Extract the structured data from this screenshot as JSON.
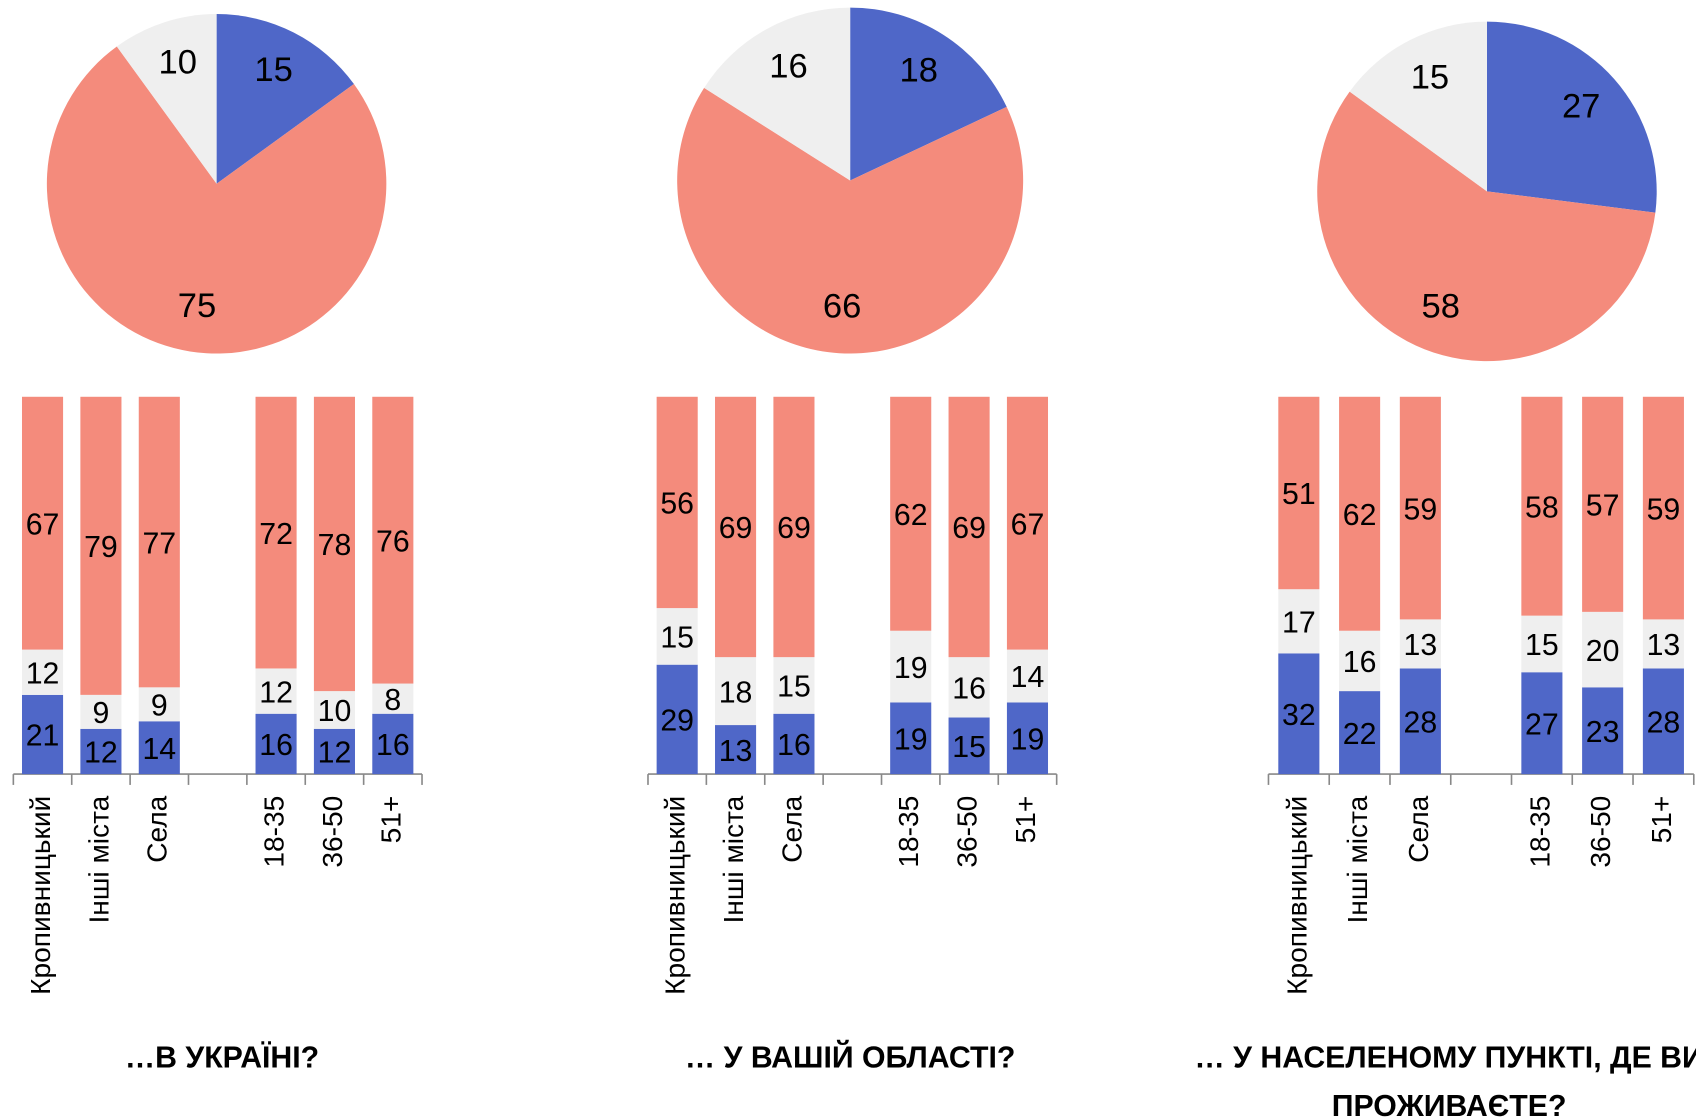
{
  "chart_data": [
    {
      "type": "pie",
      "values": [
        15,
        75,
        10
      ],
      "colors": [
        "#4f67c8",
        "#f48b7c",
        "#efefef"
      ]
    },
    {
      "type": "bar",
      "title": [
        "…В УКРАЇНІ?"
      ],
      "categories": [
        "Кропивницький",
        "Інші міста",
        "Села",
        null,
        "18-35",
        "36-50",
        "51+"
      ],
      "ylim": [
        0,
        100
      ],
      "series": [
        {
          "color": "#4f67c8",
          "values": [
            21,
            12,
            14,
            null,
            16,
            12,
            16
          ]
        },
        {
          "color": "#efefef",
          "values": [
            12,
            9,
            9,
            null,
            12,
            10,
            8
          ]
        },
        {
          "color": "#f48b7c",
          "values": [
            67,
            79,
            77,
            null,
            72,
            78,
            76
          ]
        }
      ]
    },
    {
      "type": "pie",
      "values": [
        18,
        66,
        16
      ],
      "colors": [
        "#4f67c8",
        "#f48b7c",
        "#efefef"
      ]
    },
    {
      "type": "bar",
      "title": [
        "… У ВАШІЙ ОБЛАСТІ?"
      ],
      "categories": [
        "Кропивницький",
        "Інші міста",
        "Села",
        null,
        "18-35",
        "36-50",
        "51+"
      ],
      "ylim": [
        0,
        100
      ],
      "series": [
        {
          "color": "#4f67c8",
          "values": [
            29,
            13,
            16,
            null,
            19,
            15,
            19
          ]
        },
        {
          "color": "#efefef",
          "values": [
            15,
            18,
            15,
            null,
            19,
            16,
            14
          ]
        },
        {
          "color": "#f48b7c",
          "values": [
            56,
            69,
            69,
            null,
            62,
            69,
            67
          ]
        }
      ]
    },
    {
      "type": "pie",
      "values": [
        27,
        58,
        15
      ],
      "colors": [
        "#4f67c8",
        "#f48b7c",
        "#efefef"
      ]
    },
    {
      "type": "bar",
      "title": [
        "… У НАСЕЛЕНОМУ ПУНКТІ, ДЕ ВИ",
        "ПРОЖИВАЄТЕ?"
      ],
      "categories": [
        "Кропивницький",
        "Інші міста",
        "Села",
        null,
        "18-35",
        "36-50",
        "51+"
      ],
      "ylim": [
        0,
        100
      ],
      "series": [
        {
          "color": "#4f67c8",
          "values": [
            32,
            22,
            28,
            null,
            27,
            23,
            28
          ]
        },
        {
          "color": "#efefef",
          "values": [
            17,
            16,
            13,
            null,
            15,
            20,
            13
          ]
        },
        {
          "color": "#f48b7c",
          "values": [
            51,
            62,
            59,
            null,
            58,
            57,
            59
          ]
        }
      ]
    }
  ]
}
